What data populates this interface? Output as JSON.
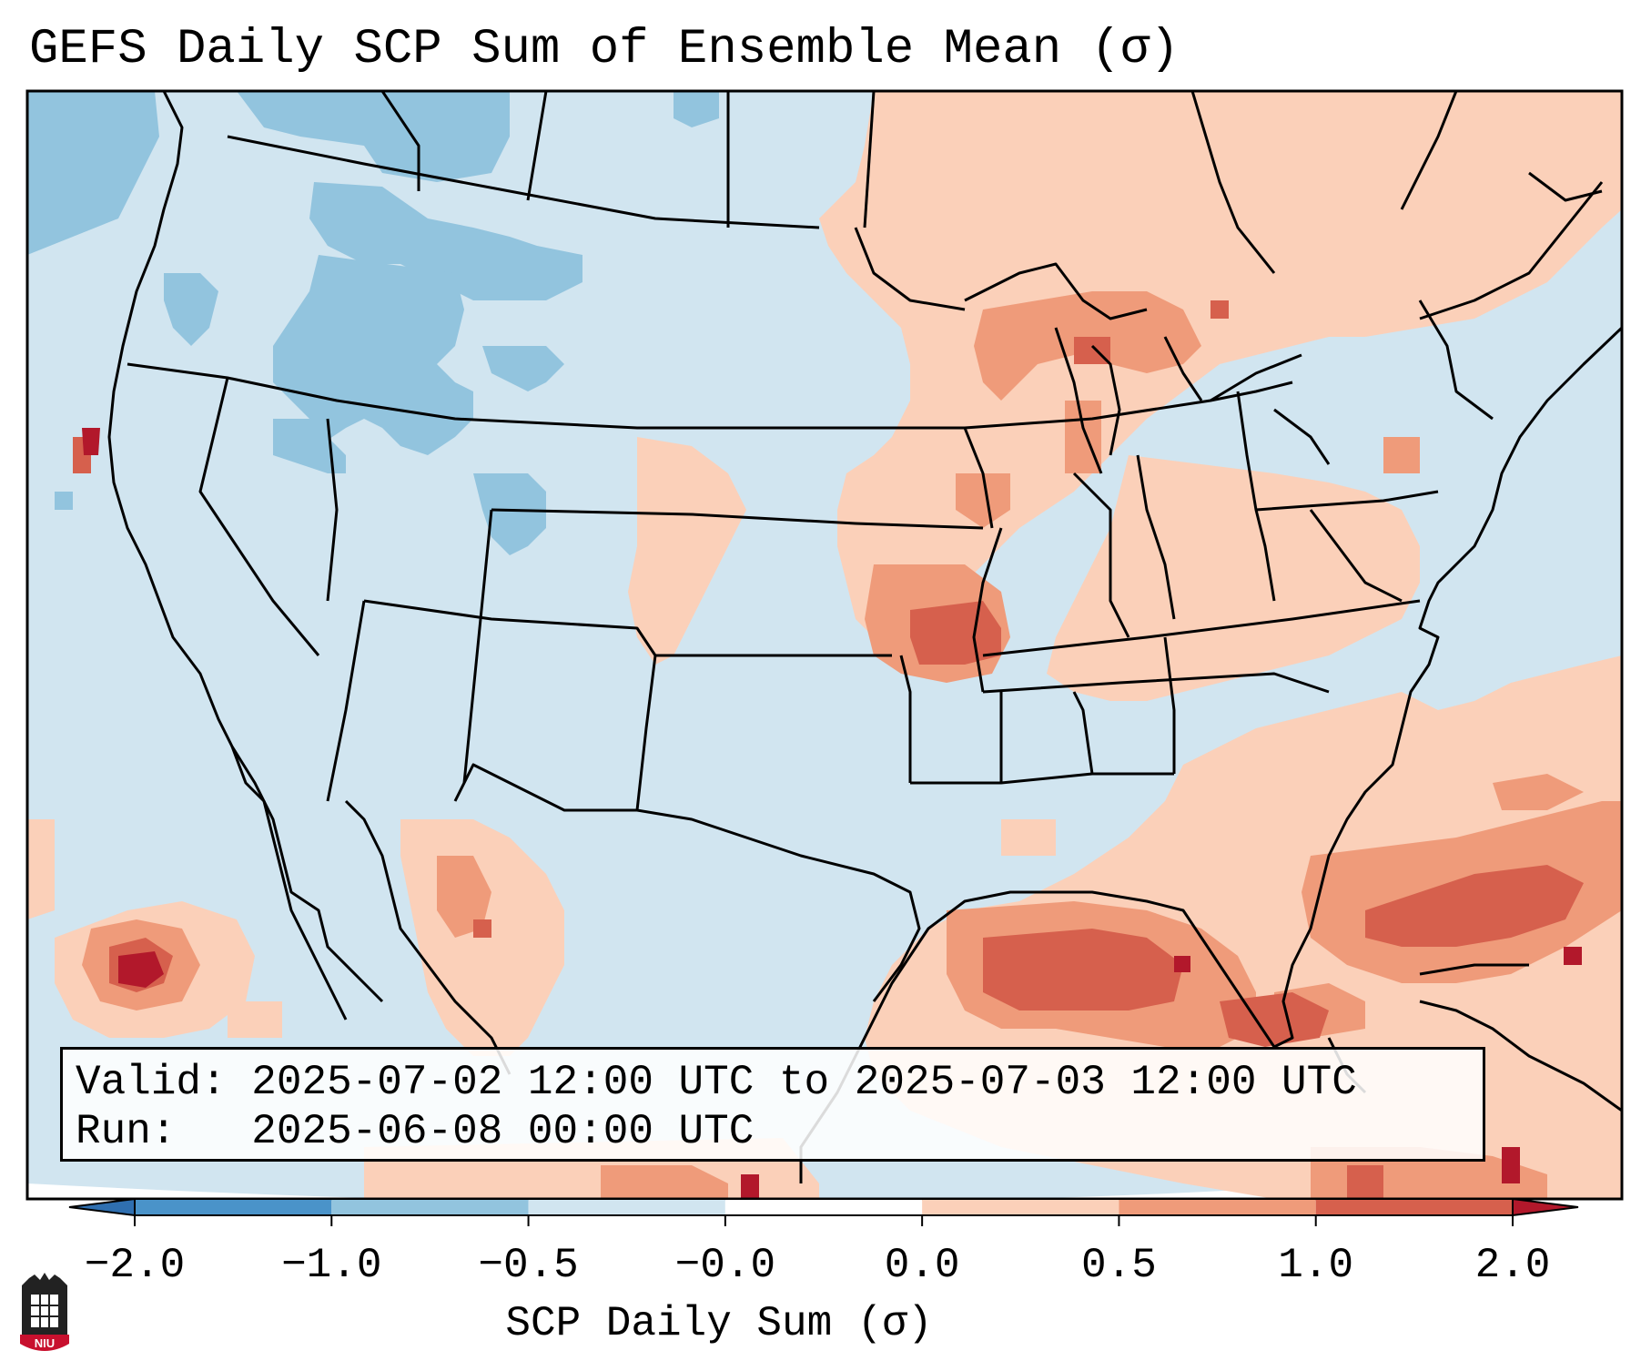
{
  "title": "GEFS Daily SCP Sum of Ensemble Mean (σ)",
  "info": {
    "valid_label": "Valid:",
    "valid_value": "2025-07-02 12:00 UTC to 2025-07-03 12:00 UTC",
    "run_label": "Run:",
    "run_value": "2025-06-08 00:00 UTC"
  },
  "colorbar": {
    "label": "SCP Daily Sum (σ)",
    "ticks": [
      "−2.0",
      "−1.0",
      "−0.5",
      "−0.0",
      "0.0",
      "0.5",
      "1.0",
      "2.0"
    ],
    "colors": [
      "#2f6fb0",
      "#4a93c9",
      "#92c4de",
      "#d1e5f0",
      "#ffffff",
      "#fbd0b9",
      "#ef9b7a",
      "#d6604d",
      "#b2182b"
    ],
    "extend": "both"
  },
  "legend_bins": [
    {
      "range": "< -2.0",
      "color": "#2f6fb0"
    },
    {
      "range": "-2.0 to -1.0",
      "color": "#4a93c9"
    },
    {
      "range": "-1.0 to -0.5",
      "color": "#92c4de"
    },
    {
      "range": "-0.5 to -0.0",
      "color": "#d1e5f0"
    },
    {
      "range": "-0.0 to 0.0",
      "color": "#ffffff"
    },
    {
      "range": "0.0 to 0.5",
      "color": "#fbd0b9"
    },
    {
      "range": "0.5 to 1.0",
      "color": "#ef9b7a"
    },
    {
      "range": "1.0 to 2.0",
      "color": "#d6604d"
    },
    {
      "range": "> 2.0",
      "color": "#b2182b"
    }
  ],
  "logo": {
    "text": "NIU",
    "color": "#c8102e"
  }
}
